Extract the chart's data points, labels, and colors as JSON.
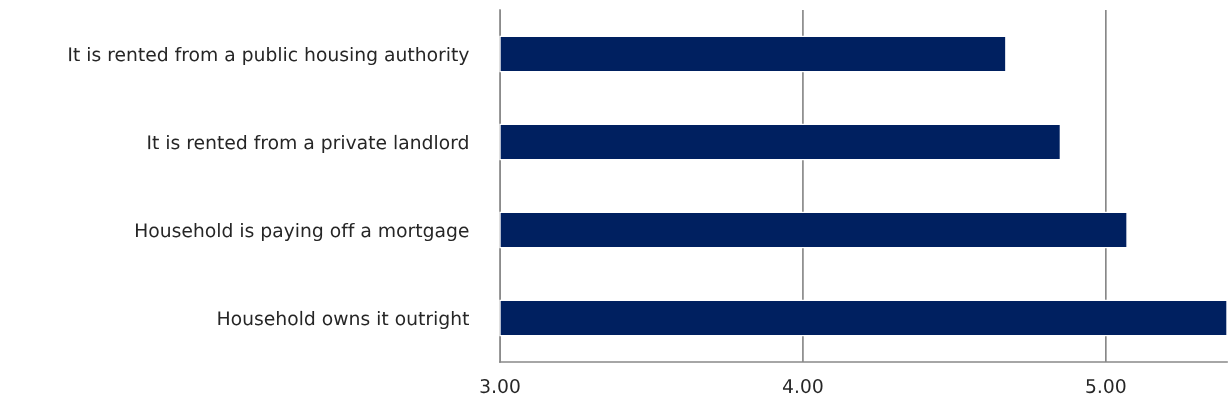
{
  "chart_data": {
    "type": "bar",
    "orientation": "horizontal",
    "categories": [
      "It is rented from a public housing authority",
      "It is rented from a private landlord",
      "Household is paying off a mortgage",
      "Household owns it outright"
    ],
    "values": [
      4.67,
      4.85,
      5.07,
      5.4
    ],
    "color": "#002060",
    "xlim": [
      3.0,
      5.4
    ],
    "xticks": [
      {
        "value": 3,
        "label": "3.00"
      },
      {
        "value": 4,
        "label": "4.00"
      },
      {
        "value": 5,
        "label": "5.00"
      }
    ],
    "grid": "x",
    "legend": false
  }
}
